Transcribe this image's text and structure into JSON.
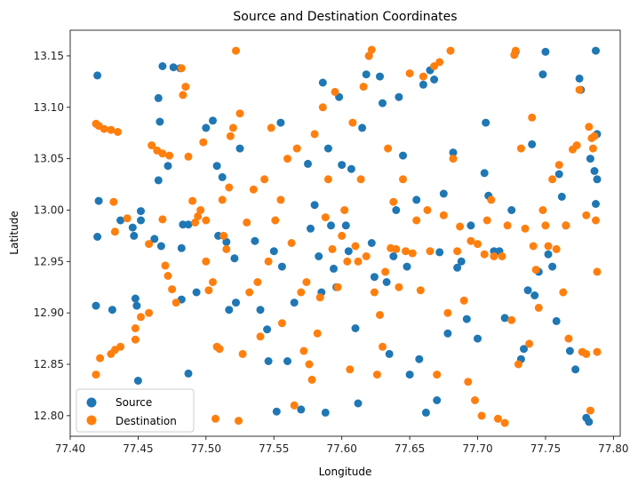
{
  "chart_data": {
    "type": "scatter",
    "title": "Source and Destination Coordinates",
    "xlabel": "Longitude",
    "ylabel": "Latitude",
    "xlim": [
      77.4,
      77.805
    ],
    "ylim": [
      12.78,
      13.175
    ],
    "xticks": [
      "77.40",
      "77.45",
      "77.50",
      "77.55",
      "77.60",
      "77.65",
      "77.70",
      "77.75",
      "77.80"
    ],
    "yticks": [
      "12.80",
      "12.85",
      "12.90",
      "12.95",
      "13.00",
      "13.05",
      "13.10",
      "13.15"
    ],
    "grid": false,
    "legend_position": "lower-left",
    "series": [
      {
        "name": "Source",
        "color": "#1f77b4",
        "points": [
          [
            77.42,
            13.131
          ],
          [
            77.419,
            12.907
          ],
          [
            77.421,
            13.009
          ],
          [
            77.42,
            12.974
          ],
          [
            77.431,
            12.903
          ],
          [
            77.437,
            12.99
          ],
          [
            77.446,
            12.983
          ],
          [
            77.447,
            12.975
          ],
          [
            77.452,
            12.999
          ],
          [
            77.452,
            12.99
          ],
          [
            77.448,
            12.914
          ],
          [
            77.449,
            12.907
          ],
          [
            77.45,
            12.834
          ],
          [
            77.462,
            12.972
          ],
          [
            77.467,
            12.965
          ],
          [
            77.468,
            13.14
          ],
          [
            77.465,
            13.109
          ],
          [
            77.466,
            13.086
          ],
          [
            77.465,
            13.029
          ],
          [
            77.472,
            13.043
          ],
          [
            77.476,
            13.139
          ],
          [
            77.481,
            13.138
          ],
          [
            77.483,
            12.986
          ],
          [
            77.487,
            12.986
          ],
          [
            77.482,
            12.963
          ],
          [
            77.487,
            12.841
          ],
          [
            77.482,
            12.913
          ],
          [
            77.493,
            12.92
          ],
          [
            77.5,
            13.08
          ],
          [
            77.505,
            13.087
          ],
          [
            77.508,
            13.043
          ],
          [
            77.512,
            13.032
          ],
          [
            77.509,
            12.975
          ],
          [
            77.515,
            12.969
          ],
          [
            77.517,
            12.903
          ],
          [
            77.521,
            12.953
          ],
          [
            77.522,
            12.91
          ],
          [
            77.525,
            13.06
          ],
          [
            77.536,
            12.97
          ],
          [
            77.54,
            12.903
          ],
          [
            77.545,
            12.884
          ],
          [
            77.546,
            12.853
          ],
          [
            77.55,
            12.96
          ],
          [
            77.552,
            12.804
          ],
          [
            77.555,
            13.085
          ],
          [
            77.556,
            12.945
          ],
          [
            77.56,
            12.853
          ],
          [
            77.565,
            12.91
          ],
          [
            77.57,
            12.806
          ],
          [
            77.575,
            13.045
          ],
          [
            77.577,
            12.982
          ],
          [
            77.58,
            13.005
          ],
          [
            77.583,
            12.955
          ],
          [
            77.585,
            12.92
          ],
          [
            77.586,
            13.124
          ],
          [
            77.588,
            12.803
          ],
          [
            77.59,
            13.06
          ],
          [
            77.592,
            12.985
          ],
          [
            77.594,
            12.943
          ],
          [
            77.596,
            12.925
          ],
          [
            77.598,
            13.11
          ],
          [
            77.6,
            13.044
          ],
          [
            77.603,
            12.985
          ],
          [
            77.605,
            12.96
          ],
          [
            77.607,
            13.04
          ],
          [
            77.61,
            12.885
          ],
          [
            77.612,
            12.812
          ],
          [
            77.615,
            13.08
          ],
          [
            77.618,
            13.132
          ],
          [
            77.62,
            13.15
          ],
          [
            77.622,
            12.968
          ],
          [
            77.624,
            12.935
          ],
          [
            77.628,
            13.13
          ],
          [
            77.63,
            13.104
          ],
          [
            77.633,
            12.93
          ],
          [
            77.635,
            12.86
          ],
          [
            77.638,
            12.955
          ],
          [
            77.64,
            13.0
          ],
          [
            77.642,
            13.11
          ],
          [
            77.645,
            13.053
          ],
          [
            77.648,
            12.945
          ],
          [
            77.65,
            12.84
          ],
          [
            77.655,
            13.01
          ],
          [
            77.657,
            12.855
          ],
          [
            77.66,
            13.122
          ],
          [
            77.662,
            12.803
          ],
          [
            77.665,
            13.136
          ],
          [
            77.668,
            13.127
          ],
          [
            77.67,
            12.815
          ],
          [
            77.672,
            12.959
          ],
          [
            77.675,
            13.016
          ],
          [
            77.678,
            12.88
          ],
          [
            77.682,
            13.056
          ],
          [
            77.685,
            12.944
          ],
          [
            77.688,
            12.95
          ],
          [
            77.692,
            12.894
          ],
          [
            77.695,
            12.985
          ],
          [
            77.7,
            12.875
          ],
          [
            77.705,
            13.036
          ],
          [
            77.706,
            13.085
          ],
          [
            77.708,
            13.014
          ],
          [
            77.712,
            12.96
          ],
          [
            77.716,
            12.96
          ],
          [
            77.72,
            12.895
          ],
          [
            77.725,
            13.0
          ],
          [
            77.728,
            13.154
          ],
          [
            77.732,
            12.855
          ],
          [
            77.734,
            12.865
          ],
          [
            77.737,
            12.922
          ],
          [
            77.74,
            13.064
          ],
          [
            77.742,
            12.917
          ],
          [
            77.745,
            12.94
          ],
          [
            77.748,
            13.132
          ],
          [
            77.75,
            13.154
          ],
          [
            77.752,
            12.957
          ],
          [
            77.755,
            12.945
          ],
          [
            77.758,
            12.892
          ],
          [
            77.76,
            13.035
          ],
          [
            77.762,
            13.013
          ],
          [
            77.765,
            12.985
          ],
          [
            77.768,
            12.863
          ],
          [
            77.772,
            12.845
          ],
          [
            77.775,
            13.128
          ],
          [
            77.776,
            13.117
          ],
          [
            77.78,
            12.798
          ],
          [
            77.782,
            12.794
          ],
          [
            77.783,
            13.05
          ],
          [
            77.786,
            13.038
          ],
          [
            77.787,
            13.155
          ],
          [
            77.787,
            13.006
          ],
          [
            77.788,
            13.074
          ],
          [
            77.788,
            13.03
          ]
        ]
      },
      {
        "name": "Destination",
        "color": "#ff7f0e",
        "points": [
          [
            77.419,
            13.084
          ],
          [
            77.421,
            13.082
          ],
          [
            77.425,
            13.079
          ],
          [
            77.43,
            13.078
          ],
          [
            77.435,
            13.076
          ],
          [
            77.419,
            12.84
          ],
          [
            77.422,
            12.856
          ],
          [
            77.43,
            12.86
          ],
          [
            77.433,
            12.864
          ],
          [
            77.437,
            12.867
          ],
          [
            77.433,
            12.979
          ],
          [
            77.432,
            13.008
          ],
          [
            77.442,
            12.992
          ],
          [
            77.448,
            12.885
          ],
          [
            77.448,
            12.874
          ],
          [
            77.452,
            12.896
          ],
          [
            77.458,
            12.9
          ],
          [
            77.458,
            12.967
          ],
          [
            77.46,
            13.063
          ],
          [
            77.464,
            13.058
          ],
          [
            77.468,
            13.055
          ],
          [
            77.473,
            13.053
          ],
          [
            77.468,
            12.991
          ],
          [
            77.47,
            12.946
          ],
          [
            77.472,
            12.936
          ],
          [
            77.475,
            12.923
          ],
          [
            77.478,
            12.91
          ],
          [
            77.482,
            13.138
          ],
          [
            77.483,
            13.112
          ],
          [
            77.485,
            13.12
          ],
          [
            77.487,
            13.052
          ],
          [
            77.49,
            13.009
          ],
          [
            77.492,
            12.988
          ],
          [
            77.494,
            12.994
          ],
          [
            77.496,
            13.0
          ],
          [
            77.498,
            13.066
          ],
          [
            77.5,
            12.99
          ],
          [
            77.5,
            12.95
          ],
          [
            77.502,
            12.922
          ],
          [
            77.505,
            12.93
          ],
          [
            77.507,
            12.797
          ],
          [
            77.508,
            12.867
          ],
          [
            77.51,
            12.865
          ],
          [
            77.512,
            13.01
          ],
          [
            77.513,
            12.975
          ],
          [
            77.515,
            12.962
          ],
          [
            77.517,
            13.022
          ],
          [
            77.518,
            13.072
          ],
          [
            77.52,
            13.08
          ],
          [
            77.522,
            13.155
          ],
          [
            77.524,
            12.795
          ],
          [
            77.525,
            13.094
          ],
          [
            77.527,
            12.86
          ],
          [
            77.53,
            12.988
          ],
          [
            77.532,
            12.92
          ],
          [
            77.535,
            13.02
          ],
          [
            77.538,
            12.93
          ],
          [
            77.54,
            12.877
          ],
          [
            77.543,
            13.03
          ],
          [
            77.546,
            12.95
          ],
          [
            77.548,
            13.08
          ],
          [
            77.551,
            12.99
          ],
          [
            77.555,
            13.01
          ],
          [
            77.556,
            12.89
          ],
          [
            77.56,
            13.05
          ],
          [
            77.563,
            12.968
          ],
          [
            77.565,
            12.81
          ],
          [
            77.567,
            13.06
          ],
          [
            77.57,
            12.92
          ],
          [
            77.572,
            12.863
          ],
          [
            77.574,
            12.93
          ],
          [
            77.576,
            12.85
          ],
          [
            77.578,
            12.835
          ],
          [
            77.58,
            13.074
          ],
          [
            77.582,
            12.88
          ],
          [
            77.584,
            12.915
          ],
          [
            77.586,
            13.1
          ],
          [
            77.588,
            12.993
          ],
          [
            77.59,
            13.03
          ],
          [
            77.593,
            12.962
          ],
          [
            77.595,
            13.115
          ],
          [
            77.597,
            12.925
          ],
          [
            77.6,
            12.975
          ],
          [
            77.602,
            13.0
          ],
          [
            77.604,
            12.95
          ],
          [
            77.606,
            12.845
          ],
          [
            77.608,
            13.085
          ],
          [
            77.61,
            12.965
          ],
          [
            77.612,
            12.95
          ],
          [
            77.614,
            13.03
          ],
          [
            77.616,
            13.12
          ],
          [
            77.618,
            12.955
          ],
          [
            77.62,
            13.15
          ],
          [
            77.622,
            13.156
          ],
          [
            77.624,
            12.92
          ],
          [
            77.626,
            12.84
          ],
          [
            77.628,
            12.898
          ],
          [
            77.63,
            12.867
          ],
          [
            77.632,
            12.94
          ],
          [
            77.634,
            13.06
          ],
          [
            77.636,
            12.963
          ],
          [
            77.638,
            13.008
          ],
          [
            77.64,
            12.962
          ],
          [
            77.642,
            12.925
          ],
          [
            77.645,
            13.03
          ],
          [
            77.647,
            12.96
          ],
          [
            77.65,
            13.133
          ],
          [
            77.652,
            12.958
          ],
          [
            77.655,
            12.99
          ],
          [
            77.658,
            12.922
          ],
          [
            77.66,
            13.13
          ],
          [
            77.663,
            13.0
          ],
          [
            77.665,
            12.96
          ],
          [
            77.668,
            13.14
          ],
          [
            77.67,
            12.84
          ],
          [
            77.672,
            13.144
          ],
          [
            77.675,
            12.995
          ],
          [
            77.678,
            12.9
          ],
          [
            77.68,
            13.155
          ],
          [
            77.682,
            13.05
          ],
          [
            77.685,
            12.96
          ],
          [
            77.687,
            12.984
          ],
          [
            77.69,
            12.912
          ],
          [
            77.693,
            12.833
          ],
          [
            77.695,
            12.97
          ],
          [
            77.698,
            12.815
          ],
          [
            77.7,
            12.967
          ],
          [
            77.703,
            12.8
          ],
          [
            77.705,
            12.957
          ],
          [
            77.707,
            12.99
          ],
          [
            77.71,
            13.01
          ],
          [
            77.712,
            12.955
          ],
          [
            77.715,
            12.797
          ],
          [
            77.718,
            12.955
          ],
          [
            77.72,
            12.793
          ],
          [
            77.722,
            12.985
          ],
          [
            77.725,
            12.893
          ],
          [
            77.727,
            13.151
          ],
          [
            77.728,
            13.155
          ],
          [
            77.73,
            12.85
          ],
          [
            77.732,
            13.06
          ],
          [
            77.735,
            12.982
          ],
          [
            77.738,
            12.87
          ],
          [
            77.74,
            13.09
          ],
          [
            77.741,
            12.965
          ],
          [
            77.743,
            12.942
          ],
          [
            77.745,
            12.905
          ],
          [
            77.748,
            13.0
          ],
          [
            77.75,
            12.985
          ],
          [
            77.752,
            12.965
          ],
          [
            77.755,
            13.03
          ],
          [
            77.758,
            12.962
          ],
          [
            77.76,
            13.044
          ],
          [
            77.763,
            12.92
          ],
          [
            77.765,
            12.985
          ],
          [
            77.767,
            12.875
          ],
          [
            77.77,
            13.059
          ],
          [
            77.773,
            13.063
          ],
          [
            77.775,
            13.117
          ],
          [
            77.777,
            12.862
          ],
          [
            77.78,
            12.86
          ],
          [
            77.782,
            13.081
          ],
          [
            77.783,
            12.805
          ],
          [
            77.784,
            13.07
          ],
          [
            77.785,
            13.06
          ],
          [
            77.786,
            13.072
          ],
          [
            77.787,
            12.99
          ],
          [
            77.788,
            12.94
          ],
          [
            77.788,
            12.862
          ],
          [
            77.78,
            12.995
          ]
        ]
      }
    ]
  }
}
